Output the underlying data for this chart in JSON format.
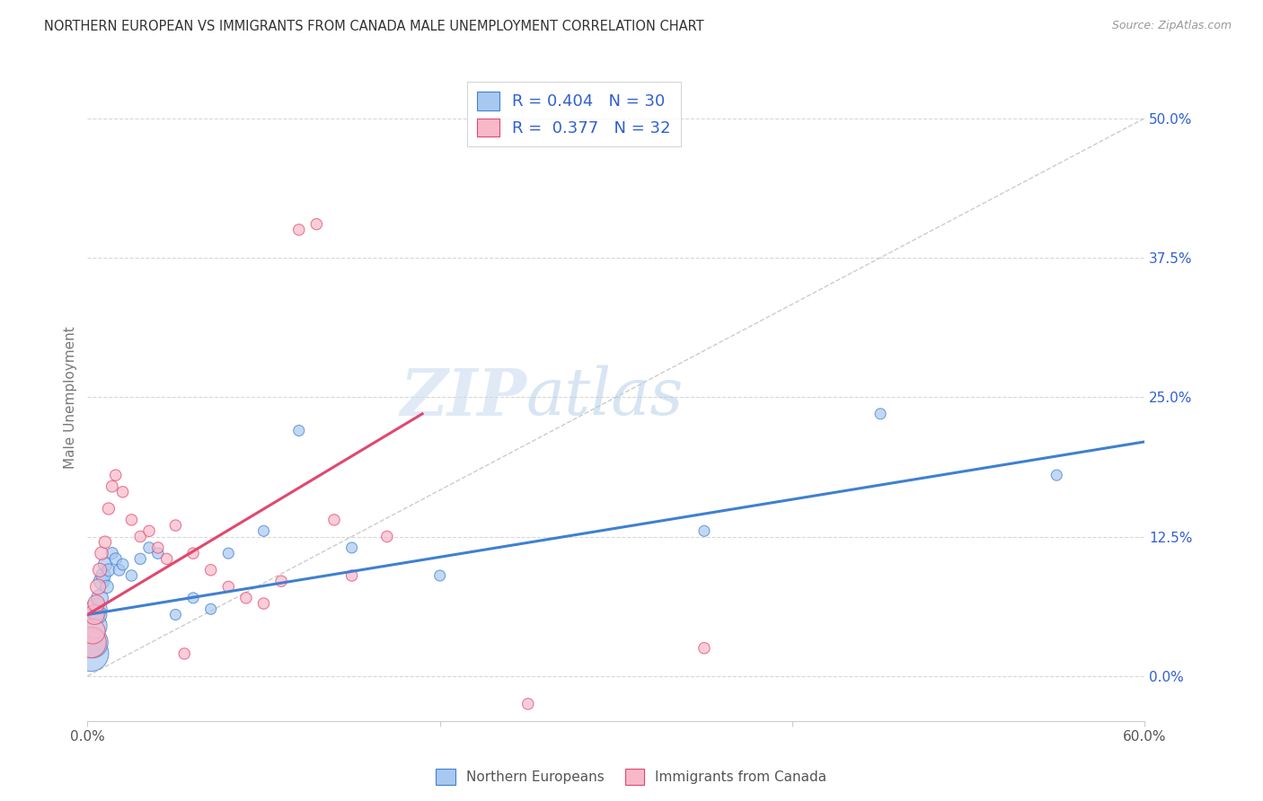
{
  "title": "NORTHERN EUROPEAN VS IMMIGRANTS FROM CANADA MALE UNEMPLOYMENT CORRELATION CHART",
  "source": "Source: ZipAtlas.com",
  "ylabel": "Male Unemployment",
  "ytick_labels": [
    "0.0%",
    "12.5%",
    "25.0%",
    "37.5%",
    "50.0%"
  ],
  "ytick_values": [
    0.0,
    12.5,
    25.0,
    37.5,
    50.0
  ],
  "xlim": [
    0.0,
    60.0
  ],
  "ylim": [
    -4.0,
    54.0
  ],
  "legend_r_blue": "0.404",
  "legend_n_blue": "30",
  "legend_r_pink": "0.377",
  "legend_n_pink": "32",
  "blue_scatter_x": [
    0.2,
    0.3,
    0.4,
    0.5,
    0.6,
    0.7,
    0.8,
    0.9,
    1.0,
    1.1,
    1.2,
    1.4,
    1.6,
    1.8,
    2.0,
    2.5,
    3.0,
    3.5,
    4.0,
    5.0,
    6.0,
    7.0,
    8.0,
    10.0,
    12.0,
    15.0,
    20.0,
    35.0,
    45.0,
    55.0
  ],
  "blue_scatter_y": [
    2.0,
    3.0,
    4.5,
    6.0,
    5.5,
    7.0,
    8.5,
    9.0,
    10.0,
    8.0,
    9.5,
    11.0,
    10.5,
    9.5,
    10.0,
    9.0,
    10.5,
    11.5,
    11.0,
    5.5,
    7.0,
    6.0,
    11.0,
    13.0,
    22.0,
    11.5,
    9.0,
    13.0,
    23.5,
    18.0
  ],
  "blue_scatter_sizes": [
    800,
    600,
    400,
    300,
    200,
    180,
    160,
    140,
    120,
    110,
    100,
    90,
    90,
    85,
    85,
    80,
    80,
    80,
    80,
    75,
    75,
    75,
    75,
    75,
    75,
    75,
    75,
    75,
    75,
    75
  ],
  "pink_scatter_x": [
    0.2,
    0.3,
    0.4,
    0.5,
    0.6,
    0.7,
    0.8,
    1.0,
    1.2,
    1.4,
    1.6,
    2.0,
    2.5,
    3.0,
    3.5,
    4.0,
    4.5,
    5.0,
    6.0,
    7.0,
    8.0,
    9.0,
    10.0,
    11.0,
    12.0,
    13.0,
    14.0,
    15.0,
    35.0,
    17.0,
    5.5,
    25.0
  ],
  "pink_scatter_y": [
    3.0,
    4.0,
    5.5,
    6.5,
    8.0,
    9.5,
    11.0,
    12.0,
    15.0,
    17.0,
    18.0,
    16.5,
    14.0,
    12.5,
    13.0,
    11.5,
    10.5,
    13.5,
    11.0,
    9.5,
    8.0,
    7.0,
    6.5,
    8.5,
    40.0,
    40.5,
    14.0,
    9.0,
    2.5,
    12.5,
    2.0,
    -2.5
  ],
  "pink_scatter_sizes": [
    600,
    400,
    250,
    180,
    150,
    120,
    110,
    95,
    90,
    85,
    80,
    80,
    80,
    80,
    80,
    80,
    80,
    80,
    80,
    80,
    80,
    80,
    80,
    80,
    80,
    80,
    80,
    80,
    80,
    80,
    80,
    80
  ],
  "blue_line_x": [
    0.0,
    60.0
  ],
  "blue_line_y": [
    5.5,
    21.0
  ],
  "pink_line_x": [
    0.0,
    19.0
  ],
  "pink_line_y": [
    5.5,
    23.5
  ],
  "blue_color": "#a8c8f0",
  "pink_color": "#f8b8c8",
  "blue_line_color": "#4080d0",
  "pink_line_color": "#e04870",
  "trend_line_color": "#cccccc",
  "trend_line_x": [
    0.0,
    60.0
  ],
  "trend_line_y": [
    0.0,
    50.0
  ],
  "grid_color": "#d8d8d8",
  "watermark_zip": "ZIP",
  "watermark_atlas": "atlas",
  "legend_text_color": "#3060d0",
  "label_blue": "Northern Europeans",
  "label_pink": "Immigrants from Canada"
}
